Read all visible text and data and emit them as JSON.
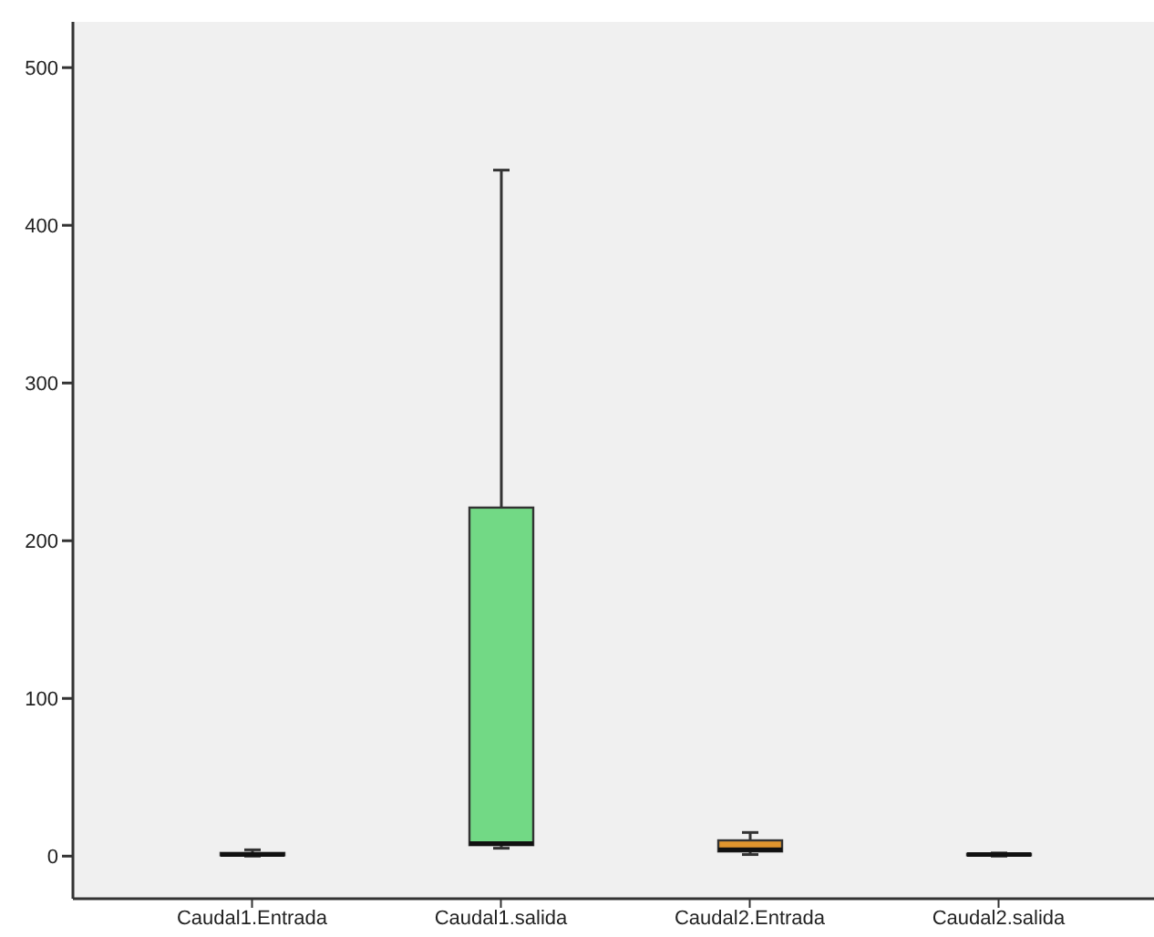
{
  "chart_data": {
    "type": "box",
    "categories": [
      "Caudal1.Entrada",
      "Caudal1.salida",
      "Caudal2.Entrada",
      "Caudal2.salida"
    ],
    "boxes": [
      {
        "low": 0,
        "q1": 0.5,
        "median": 1,
        "q3": 2,
        "high": 4
      },
      {
        "low": 5,
        "q1": 7,
        "median": 8,
        "q3": 221,
        "high": 435
      },
      {
        "low": 1,
        "q1": 3,
        "median": 4,
        "q3": 10,
        "high": 15
      },
      {
        "low": 0,
        "q1": 0.5,
        "median": 1,
        "q3": 1.5,
        "high": 2
      }
    ],
    "colors": [
      "#333333",
      "#72d985",
      "#e0952e",
      "#333333"
    ],
    "ylim": [
      -27,
      529
    ],
    "yticks": [
      0,
      100,
      200,
      300,
      400,
      500
    ],
    "grid": false
  }
}
